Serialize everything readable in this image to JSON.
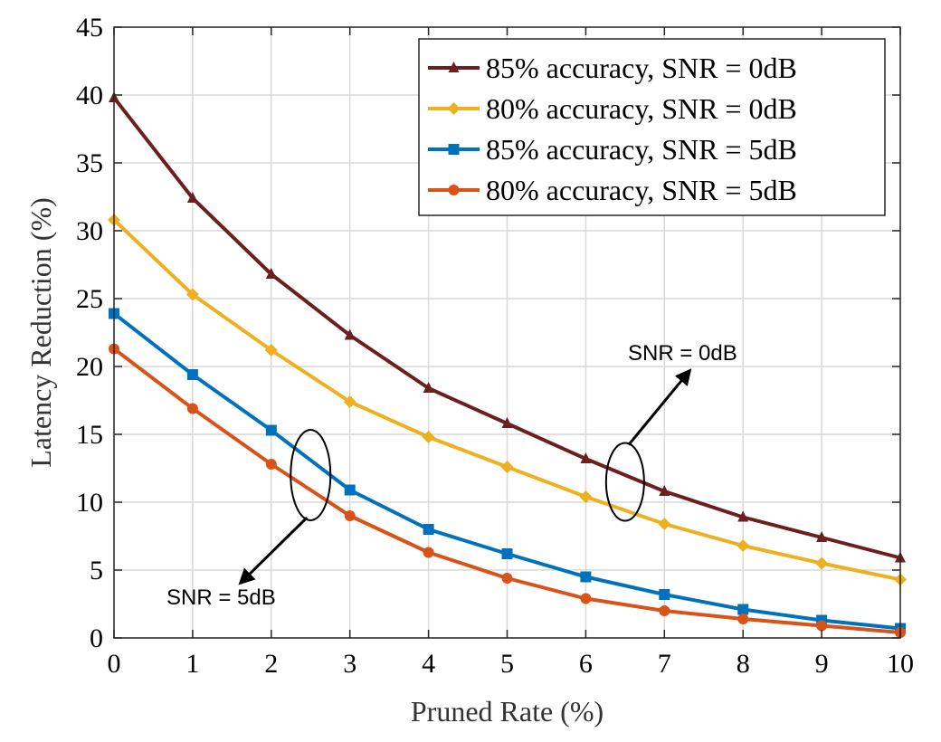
{
  "chart_data": {
    "type": "line",
    "title": "",
    "xlabel": "Pruned Rate (%)",
    "ylabel": "Latency Reduction (%)",
    "xlim": [
      0,
      10
    ],
    "ylim": [
      0,
      45
    ],
    "xticks": [
      0,
      1,
      2,
      3,
      4,
      5,
      6,
      7,
      8,
      9,
      10
    ],
    "yticks": [
      0,
      5,
      10,
      15,
      20,
      25,
      30,
      35,
      40,
      45
    ],
    "grid": true,
    "legend_position": "top-right",
    "x": [
      0,
      1,
      2,
      3,
      4,
      5,
      6,
      7,
      8,
      9,
      10
    ],
    "series": [
      {
        "name": "85% accuracy, SNR = 0dB",
        "color": "#6b1f1f",
        "marker": "triangle",
        "values": [
          39.8,
          32.4,
          26.8,
          22.3,
          18.4,
          15.8,
          13.2,
          10.8,
          8.9,
          7.4,
          5.9
        ]
      },
      {
        "name": "80% accuracy, SNR = 0dB",
        "color": "#edb120",
        "marker": "diamond",
        "values": [
          30.8,
          25.3,
          21.2,
          17.4,
          14.8,
          12.6,
          10.4,
          8.4,
          6.8,
          5.5,
          4.3
        ]
      },
      {
        "name": "85% accuracy, SNR = 5dB",
        "color": "#0072bd",
        "marker": "square",
        "values": [
          23.9,
          19.4,
          15.3,
          10.9,
          8.0,
          6.2,
          4.5,
          3.2,
          2.1,
          1.3,
          0.7
        ]
      },
      {
        "name": "80% accuracy, SNR = 5dB",
        "color": "#d95319",
        "marker": "circle",
        "values": [
          21.3,
          16.9,
          12.8,
          9.0,
          6.3,
          4.4,
          2.9,
          2.0,
          1.4,
          0.9,
          0.4
        ]
      }
    ],
    "annotations": [
      {
        "text": "SNR = 0dB",
        "ellipse_center": [
          6.5,
          11.5
        ],
        "points_to": "upper-right"
      },
      {
        "text": "SNR = 5dB",
        "ellipse_center": [
          2.5,
          12.0
        ],
        "points_to": "lower-left"
      }
    ]
  }
}
